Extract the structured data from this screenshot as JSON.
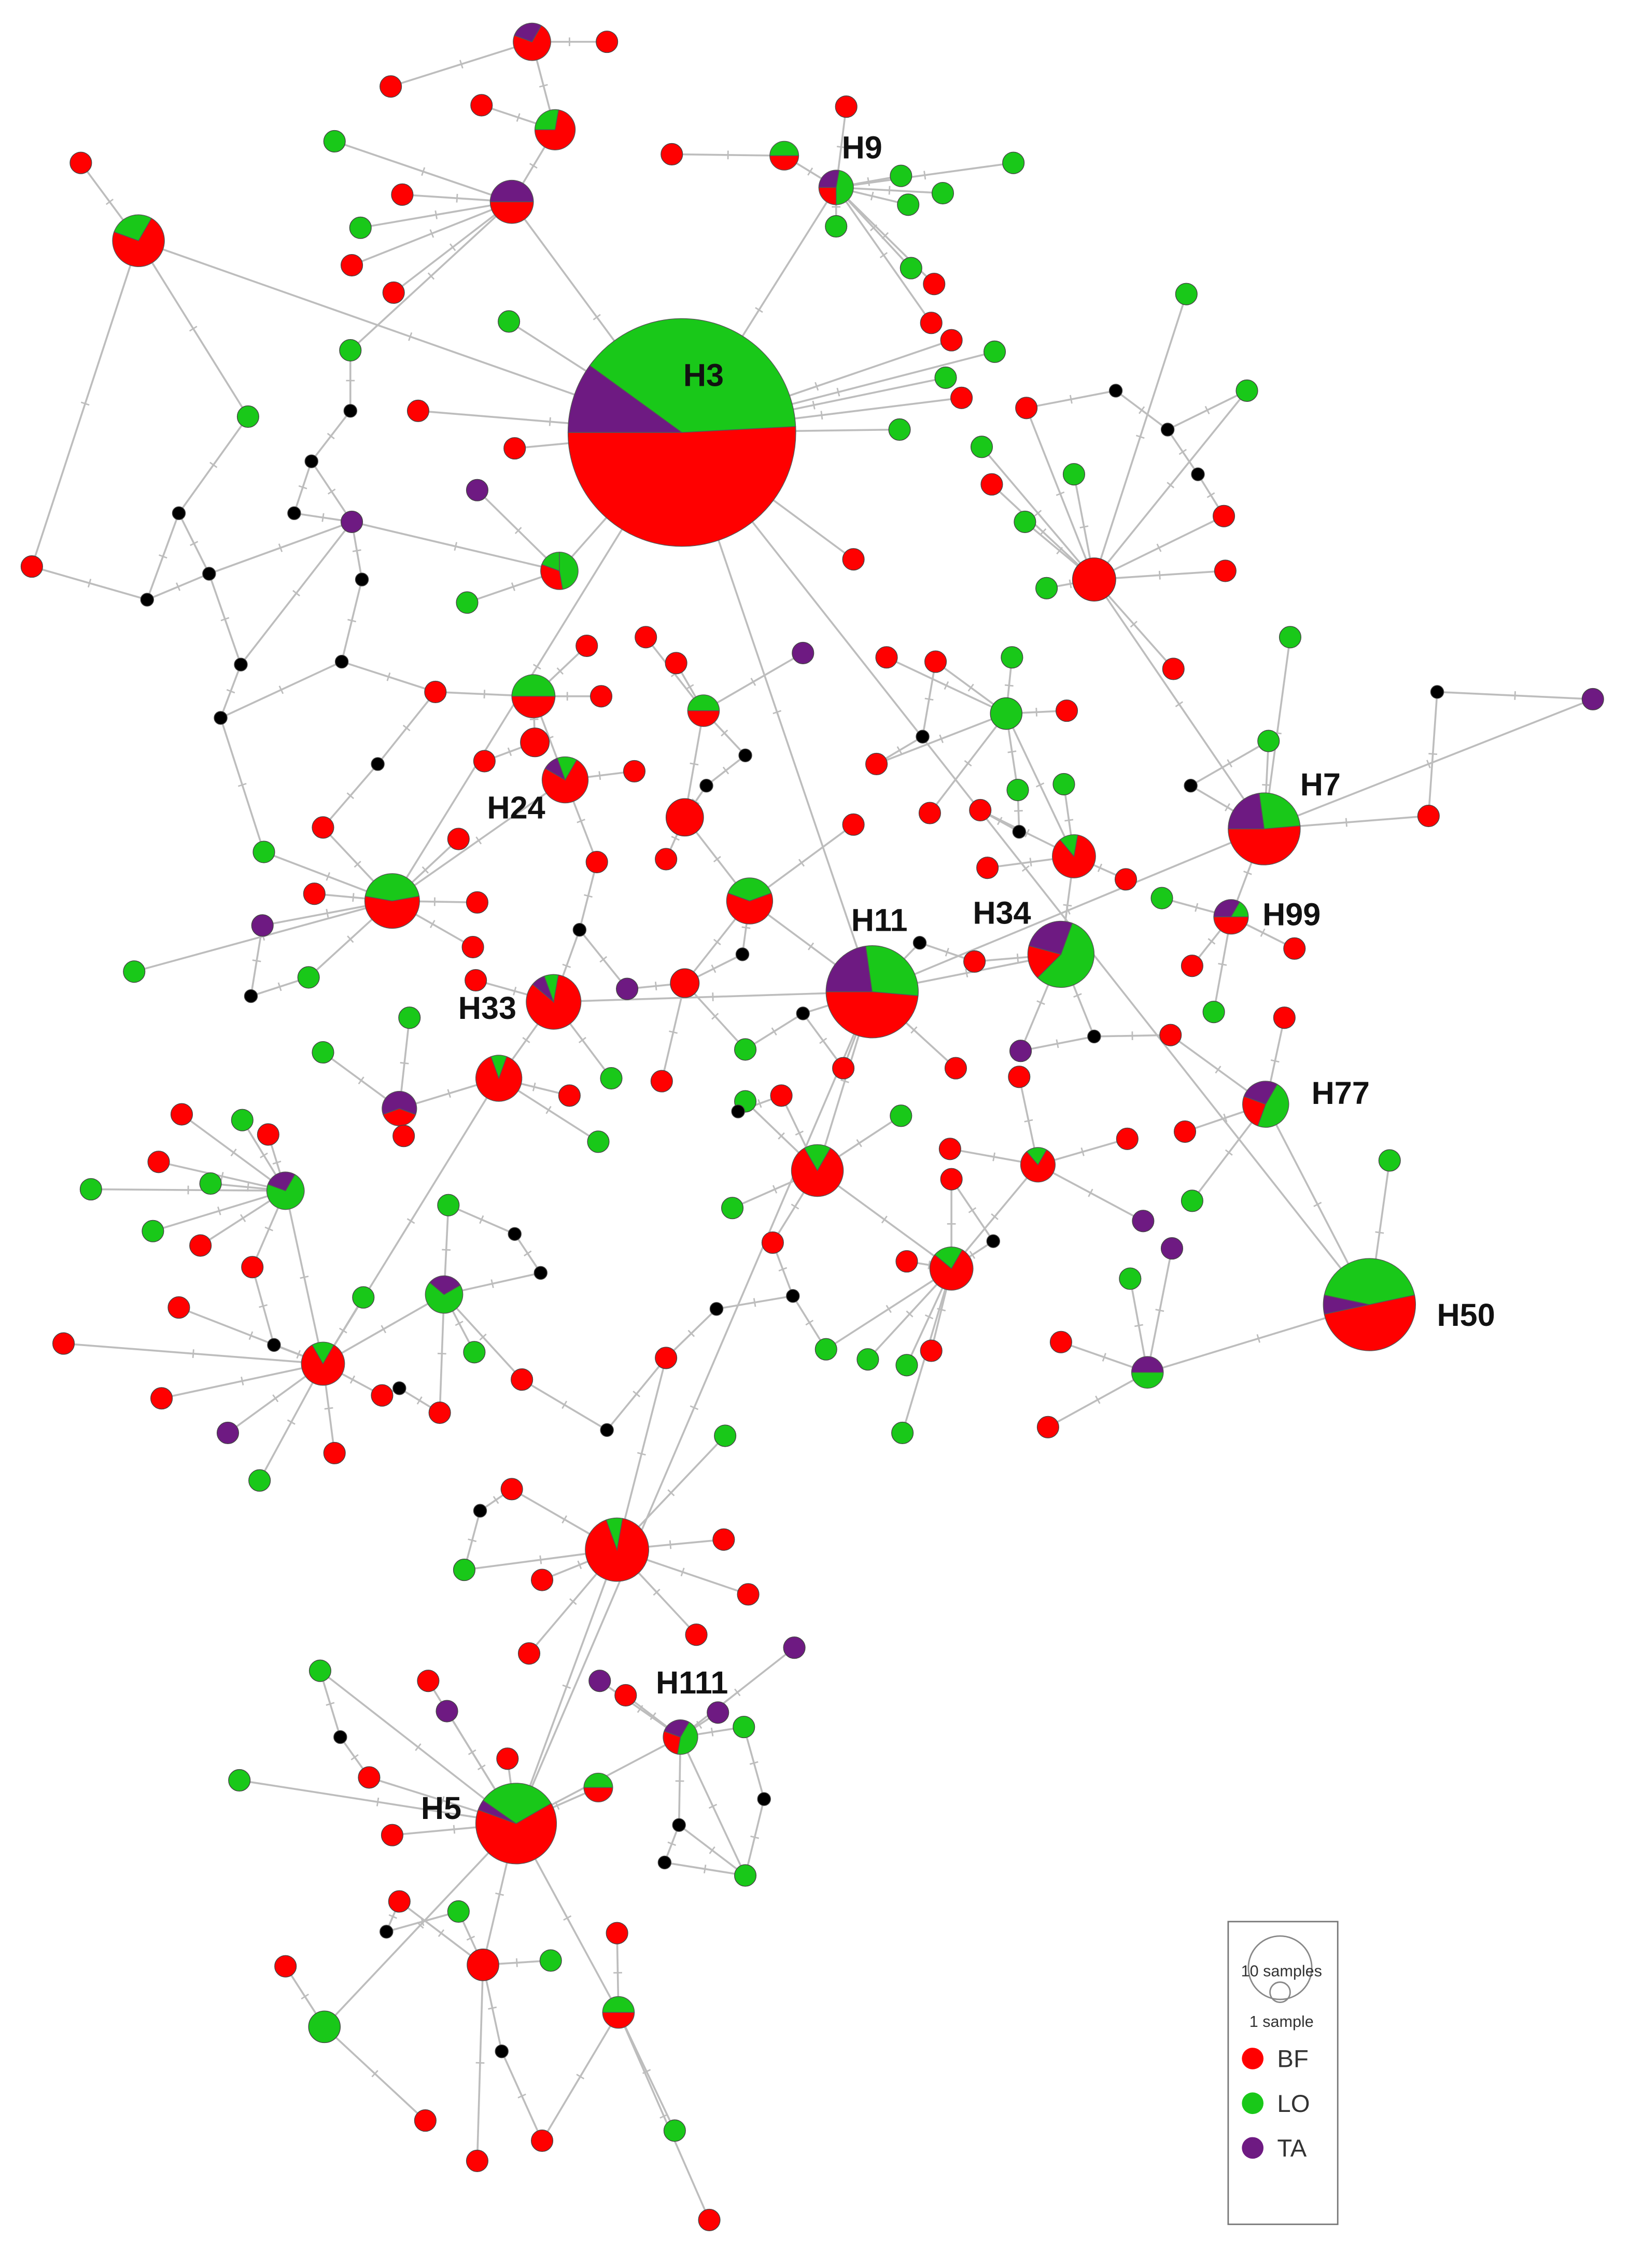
{
  "labels": [
    "H3",
    "H9",
    "H7",
    "H24",
    "H11",
    "H34",
    "H99",
    "H33",
    "H77",
    "H50",
    "H111",
    "H5"
  ],
  "legend": {
    "size_labels": [
      "10 samples",
      "1 sample"
    ],
    "groups": [
      {
        "name": "BF",
        "color": "#ff0000"
      },
      {
        "name": "LO",
        "color": "#19c819"
      },
      {
        "name": "TA",
        "color": "#6e1a82"
      }
    ]
  }
}
